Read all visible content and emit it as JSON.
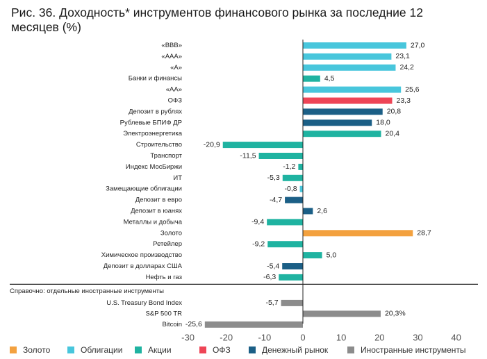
{
  "title": "Рис. 36. Доходность* инструментов финансового рынка за последние 12 месяцев (%)",
  "colors": {
    "Облигации": "#48c6dc",
    "ОФЗ": "#ee4556",
    "Денежный рынок": "#1b5f86",
    "Акции": "#1fb3a1",
    "Золото": "#f3a13f",
    "Иностранные инструменты": "#8c8c8c"
  },
  "legend": [
    {
      "label": "Золото",
      "color": "#f3a13f"
    },
    {
      "label": "Облигации",
      "color": "#48c6dc"
    },
    {
      "label": "Акции",
      "color": "#1fb3a1"
    },
    {
      "label": "ОФЗ",
      "color": "#ee4556"
    },
    {
      "label": "Денежный рынок",
      "color": "#1b5f86"
    },
    {
      "label": "Иностранные инструменты",
      "color": "#8c8c8c"
    }
  ],
  "chart_data": {
    "type": "bar",
    "orientation": "horizontal",
    "xlim": [
      -30,
      40
    ],
    "xticks": [
      "-30",
      "-20",
      "-10",
      "0",
      "10",
      "20",
      "30",
      "40"
    ],
    "grid": false,
    "legend_position": "bottom",
    "section_label": "Справочно: отдельные иностранные инструменты",
    "bars": [
      {
        "label": "«BBB»",
        "value": 27.0,
        "value_label": "27,0",
        "group": "Облигации"
      },
      {
        "label": "«AAA»",
        "value": 23.1,
        "value_label": "23,1",
        "group": "Облигации"
      },
      {
        "label": "«A»",
        "value": 24.2,
        "value_label": "24,2",
        "group": "Облигации"
      },
      {
        "label": "Банки и финансы",
        "value": 4.5,
        "value_label": "4,5",
        "group": "Акции"
      },
      {
        "label": "«AA»",
        "value": 25.6,
        "value_label": "25,6",
        "group": "Облигации"
      },
      {
        "label": "ОФЗ",
        "value": 23.3,
        "value_label": "23,3",
        "group": "ОФЗ"
      },
      {
        "label": "Депозит в рублях",
        "value": 20.8,
        "value_label": "20,8",
        "group": "Денежный рынок"
      },
      {
        "label": "Рублевые БПИФ ДР",
        "value": 18.0,
        "value_label": "18,0",
        "group": "Денежный рынок"
      },
      {
        "label": "Электроэнергетика",
        "value": 20.4,
        "value_label": "20,4",
        "group": "Акции"
      },
      {
        "label": "Строительство",
        "value": -20.9,
        "value_label": "-20,9",
        "group": "Акции"
      },
      {
        "label": "Транспорт",
        "value": -11.5,
        "value_label": "-11,5",
        "group": "Акции"
      },
      {
        "label": "Индекс МосБиржи",
        "value": -1.2,
        "value_label": "-1,2",
        "group": "Акции"
      },
      {
        "label": "ИТ",
        "value": -5.3,
        "value_label": "-5,3",
        "group": "Акции"
      },
      {
        "label": "Замещающие облигации",
        "value": -0.8,
        "value_label": "-0,8",
        "group": "Облигации"
      },
      {
        "label": "Депозит в евро",
        "value": -4.7,
        "value_label": "-4,7",
        "group": "Денежный рынок"
      },
      {
        "label": "Депозит в юанях",
        "value": 2.6,
        "value_label": "2,6",
        "group": "Денежный рынок"
      },
      {
        "label": "Металлы и добыча",
        "value": -9.4,
        "value_label": "-9,4",
        "group": "Акции"
      },
      {
        "label": "Золото",
        "value": 28.7,
        "value_label": "28,7",
        "group": "Золото"
      },
      {
        "label": "Ретейлер",
        "value": -9.2,
        "value_label": "-9,2",
        "group": "Акции"
      },
      {
        "label": "Химическое производство",
        "value": 5.0,
        "value_label": "5,0",
        "group": "Акции"
      },
      {
        "label": "Депозит в долларах США",
        "value": -5.4,
        "value_label": "-5,4",
        "group": "Денежный рынок"
      },
      {
        "label": "Нефть и газ",
        "value": -6.3,
        "value_label": "-6,3",
        "group": "Акции"
      }
    ],
    "foreign_bars": [
      {
        "label": "U.S. Treasury Bond Index",
        "value": -5.7,
        "value_label": "-5,7",
        "group": "Иностранные инструменты"
      },
      {
        "label": "S&P 500 TR",
        "value": 20.3,
        "value_label": "20,3%",
        "group": "Иностранные инструменты"
      },
      {
        "label": "Bitcoin",
        "value": -25.6,
        "value_label": "-25,6",
        "group": "Иностранные инструменты"
      }
    ]
  }
}
